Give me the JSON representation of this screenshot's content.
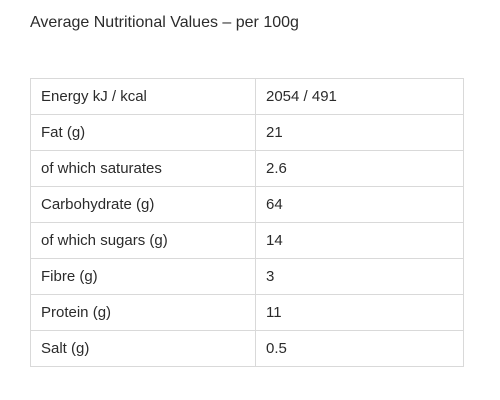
{
  "heading": "Average Nutritional Values – per 100g",
  "rows": [
    {
      "label": "Energy kJ / kcal",
      "value": "2054 / 491"
    },
    {
      "label": "Fat (g)",
      "value": "21"
    },
    {
      "label": "of which saturates",
      "value": "2.6"
    },
    {
      "label": "Carbohydrate (g)",
      "value": "64"
    },
    {
      "label": "of which sugars (g)",
      "value": "14"
    },
    {
      "label": "Fibre (g)",
      "value": "3"
    },
    {
      "label": "Protein (g)",
      "value": "11"
    },
    {
      "label": "Salt (g)",
      "value": "0.5"
    }
  ]
}
